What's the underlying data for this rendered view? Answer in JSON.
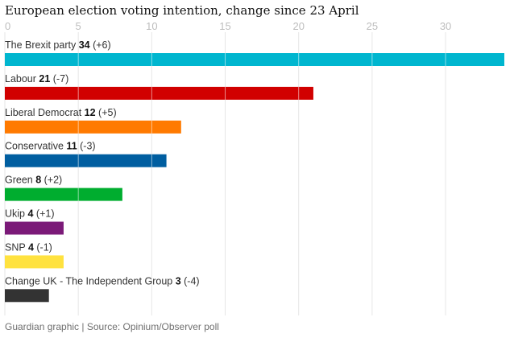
{
  "header": {
    "title": "European election voting intention, change since 23 April"
  },
  "footer": {
    "source": "Guardian graphic | Source: Opinium/Observer poll"
  },
  "chart_data": {
    "type": "bar",
    "orientation": "horizontal",
    "title": "European election voting intention, change since 23 April",
    "xlabel": "",
    "ylabel": "",
    "xlim": [
      0,
      34
    ],
    "xticks": [
      0,
      5,
      10,
      15,
      20,
      25,
      30
    ],
    "grid": true,
    "categories": [
      "The Brexit party",
      "Labour",
      "Liberal Democrat",
      "Conservative",
      "Green",
      "Ukip",
      "SNP",
      "Change UK - The Independent Group"
    ],
    "values": [
      34,
      21,
      12,
      11,
      8,
      4,
      4,
      3
    ],
    "changes": [
      "(+6)",
      "(-7)",
      "(+5)",
      "(-3)",
      "(+2)",
      "(+1)",
      "(-1)",
      "(-4)"
    ],
    "colors": [
      "#00b6cf",
      "#d10000",
      "#ff7a00",
      "#005ea0",
      "#00ad2f",
      "#7b1a78",
      "#ffe23f",
      "#333333"
    ]
  }
}
